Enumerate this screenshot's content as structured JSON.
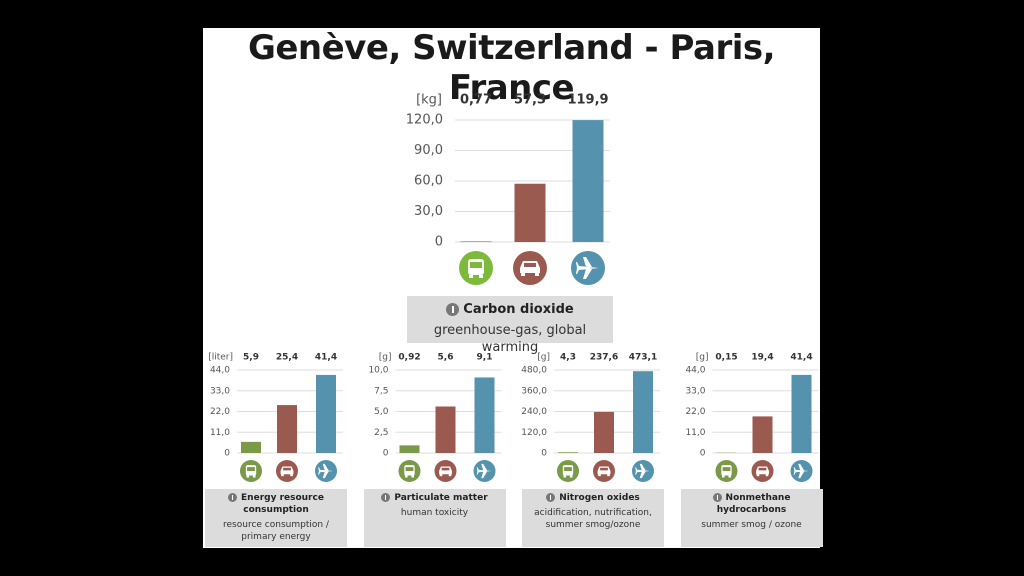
{
  "page_title": "Genève, Switzerland - Paris, France",
  "chart_data": [
    {
      "type": "bar",
      "title": "Carbon dioxide",
      "subtitle": "greenhouse-gas, global warming",
      "ylabel": "[kg]",
      "categories": [
        null,
        null,
        null
      ],
      "values": [
        0.77,
        57.3,
        119.9
      ],
      "value_labels": [
        "0,77",
        "57,3",
        "119,9"
      ],
      "colors": [
        "#7dba3c",
        "#9b5a4f",
        "#5492ad"
      ],
      "ylim": [
        0,
        120
      ],
      "yticks": [
        0,
        {
          "value": 30,
          "label": "30,0"
        },
        {
          "value": 60,
          "label": "60,0"
        },
        {
          "value": 90,
          "label": "90,0"
        },
        {
          "value": 120,
          "label": "120,0"
        }
      ],
      "grid": true
    },
    {
      "type": "bar",
      "title": "Energy resource consumption",
      "subtitle": "resource consumption / primary energy",
      "ylabel": "[liter]",
      "categories": [
        null,
        null,
        null
      ],
      "values": [
        5.9,
        25.4,
        41.4
      ],
      "value_labels": [
        "5,9",
        "25,4",
        "41,4"
      ],
      "colors": [
        "#7a9a4a",
        "#9b5a4f",
        "#5492ad"
      ],
      "ylim": [
        0,
        44
      ],
      "yticks": [
        0,
        {
          "value": 11,
          "label": "11,0"
        },
        {
          "value": 22,
          "label": "22,0"
        },
        {
          "value": 33,
          "label": "33,0"
        },
        {
          "value": 44,
          "label": "44,0"
        }
      ],
      "grid": true
    },
    {
      "type": "bar",
      "title": "Particulate matter",
      "subtitle": "human toxicity",
      "ylabel": "[g]",
      "categories": [
        null,
        null,
        null
      ],
      "values": [
        0.92,
        5.6,
        9.1
      ],
      "value_labels": [
        "0,92",
        "5,6",
        "9,1"
      ],
      "colors": [
        "#7a9a4a",
        "#9b5a4f",
        "#5492ad"
      ],
      "ylim": [
        0,
        10
      ],
      "yticks": [
        0,
        {
          "value": 2.5,
          "label": "2,5"
        },
        {
          "value": 5,
          "label": "5,0"
        },
        {
          "value": 7.5,
          "label": "7,5"
        },
        {
          "value": 10,
          "label": "10,0"
        }
      ],
      "grid": true
    },
    {
      "type": "bar",
      "title": "Nitrogen oxides",
      "subtitle": "acidification, nutrification, summer smog/ozone",
      "ylabel": "[g]",
      "categories": [
        null,
        null,
        null
      ],
      "values": [
        4.3,
        237.6,
        473.1
      ],
      "value_labels": [
        "4,3",
        "237,6",
        "473,1"
      ],
      "colors": [
        "#7a9a4a",
        "#9b5a4f",
        "#5492ad"
      ],
      "ylim": [
        0,
        480
      ],
      "yticks": [
        0,
        {
          "value": 120,
          "label": "120,0"
        },
        {
          "value": 240,
          "label": "240,0"
        },
        {
          "value": 360,
          "label": "360,0"
        },
        {
          "value": 480,
          "label": "480,0"
        }
      ],
      "grid": true
    },
    {
      "type": "bar",
      "title": "Nonmethane hydrocarbons",
      "subtitle": "summer smog / ozone",
      "ylabel": "[g]",
      "categories": [
        null,
        null,
        null
      ],
      "values": [
        0.15,
        19.4,
        41.4
      ],
      "value_labels": [
        "0,15",
        "19,4",
        "41,4"
      ],
      "colors": [
        "#7a9a4a",
        "#9b5a4f",
        "#5492ad"
      ],
      "ylim": [
        0,
        44
      ],
      "yticks": [
        0,
        {
          "value": 11,
          "label": "11,0"
        },
        {
          "value": 22,
          "label": "22,0"
        },
        {
          "value": 33,
          "label": "33,0"
        },
        {
          "value": 44,
          "label": "44,0"
        }
      ],
      "grid": true
    }
  ]
}
